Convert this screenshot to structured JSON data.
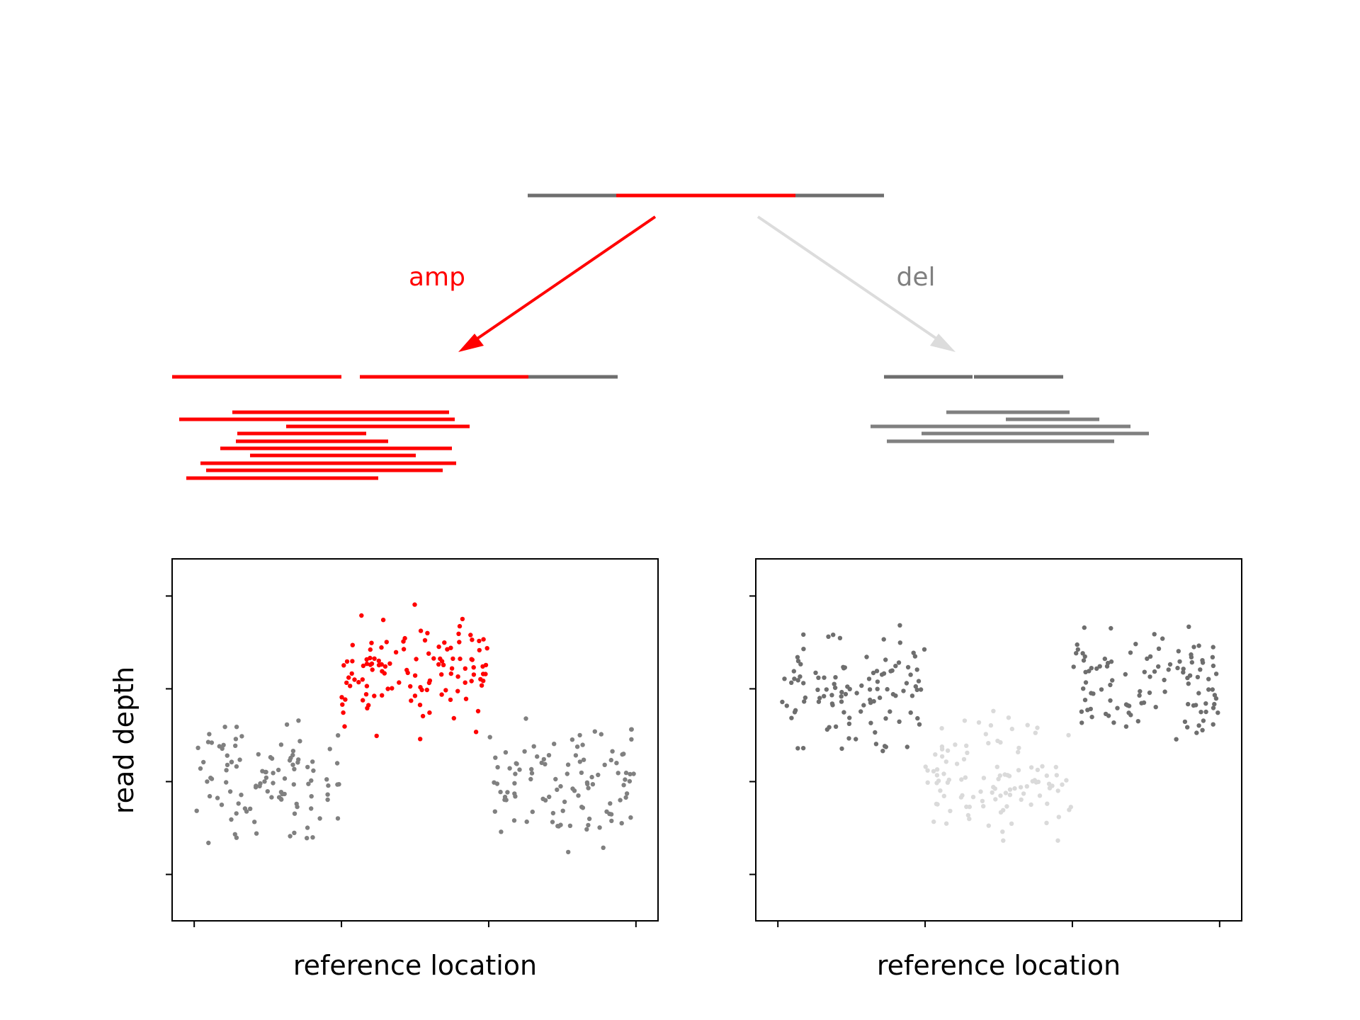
{
  "colors": {
    "amp": "#ff0000",
    "neutral": "#6e6e6e",
    "read_gray": "#808080",
    "del_arrow": "#dcdcdc",
    "del_points": "#dadada",
    "axes": "#000000"
  },
  "labels": {
    "amp": "amp",
    "del": "del"
  },
  "chart_data": [
    {
      "type": "scatter",
      "name": "amp-read-depth",
      "xlabel": "reference location",
      "ylabel": "read depth",
      "show_tick_labels": false,
      "grid": false,
      "xlim": [
        -0.15,
        3.15
      ],
      "ylim": [
        -0.5,
        3.4
      ],
      "xticks": [
        0,
        1,
        2,
        3
      ],
      "yticks": [
        0,
        1,
        2,
        3
      ],
      "segments": [
        {
          "x_start": 0.0,
          "x_end": 1.0,
          "level": 1.0,
          "spread": 0.42,
          "count": 105,
          "color": "#808080"
        },
        {
          "x_start": 1.0,
          "x_end": 2.0,
          "level": 2.2,
          "spread": 0.42,
          "count": 120,
          "color": "#ff0000"
        },
        {
          "x_start": 2.0,
          "x_end": 3.0,
          "level": 1.0,
          "spread": 0.42,
          "count": 105,
          "color": "#808080"
        }
      ]
    },
    {
      "type": "scatter",
      "name": "del-read-depth",
      "xlabel": "reference location",
      "ylabel": "",
      "show_tick_labels": false,
      "grid": false,
      "xlim": [
        -0.15,
        3.15
      ],
      "ylim": [
        -0.5,
        3.4
      ],
      "xticks": [
        0,
        1,
        2,
        3
      ],
      "yticks": [
        0,
        1,
        2,
        3
      ],
      "segments": [
        {
          "x_start": 0.0,
          "x_end": 1.0,
          "level": 2.0,
          "spread": 0.42,
          "count": 110,
          "color": "#6e6e6e"
        },
        {
          "x_start": 1.0,
          "x_end": 2.0,
          "level": 1.0,
          "spread": 0.42,
          "count": 110,
          "color": "#dadada"
        },
        {
          "x_start": 2.0,
          "x_end": 3.0,
          "level": 2.0,
          "spread": 0.42,
          "count": 110,
          "color": "#6e6e6e"
        }
      ]
    }
  ]
}
